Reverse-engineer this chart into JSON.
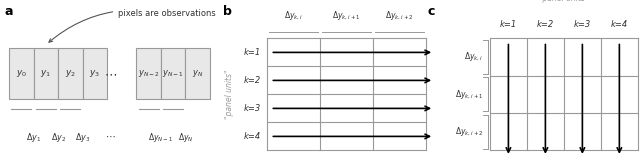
{
  "panel_a_label": "a",
  "panel_b_label": "b",
  "panel_c_label": "c",
  "box_labels_a": [
    "$y_0$",
    "$y_1$",
    "$y_2$",
    "$y_3$",
    "$y_{N-2}$",
    "$y_{N-1}$",
    "$y_N$"
  ],
  "delta_labels_a": [
    "$\\Delta y_1$",
    "$\\Delta y_2$",
    "$\\Delta y_3$",
    "$\\Delta y_{N-1}$",
    "$\\Delta y_N$"
  ],
  "k_labels_b": [
    "k=1",
    "k=2",
    "k=3",
    "k=4"
  ],
  "col_headers_b": [
    "$\\Delta y_{k,i}$",
    "$\\Delta y_{k,i+1}$",
    "$\\Delta y_{k,i+2}$"
  ],
  "col_headers_c": [
    "k=1",
    "k=2",
    "k=3",
    "k=4"
  ],
  "row_labels_c": [
    "$\\Delta y_{k,i}$",
    "$\\Delta y_{k,i+1}$",
    "$\\Delta y_{k,i+2}$"
  ],
  "panel_units_label": "\"panel units\"",
  "annotation_text": "pixels are observations",
  "bg_color": "#ffffff",
  "box_fill": "#e8e8e8",
  "box_edge": "#999999",
  "text_color": "#333333",
  "gray_text": "#999999"
}
